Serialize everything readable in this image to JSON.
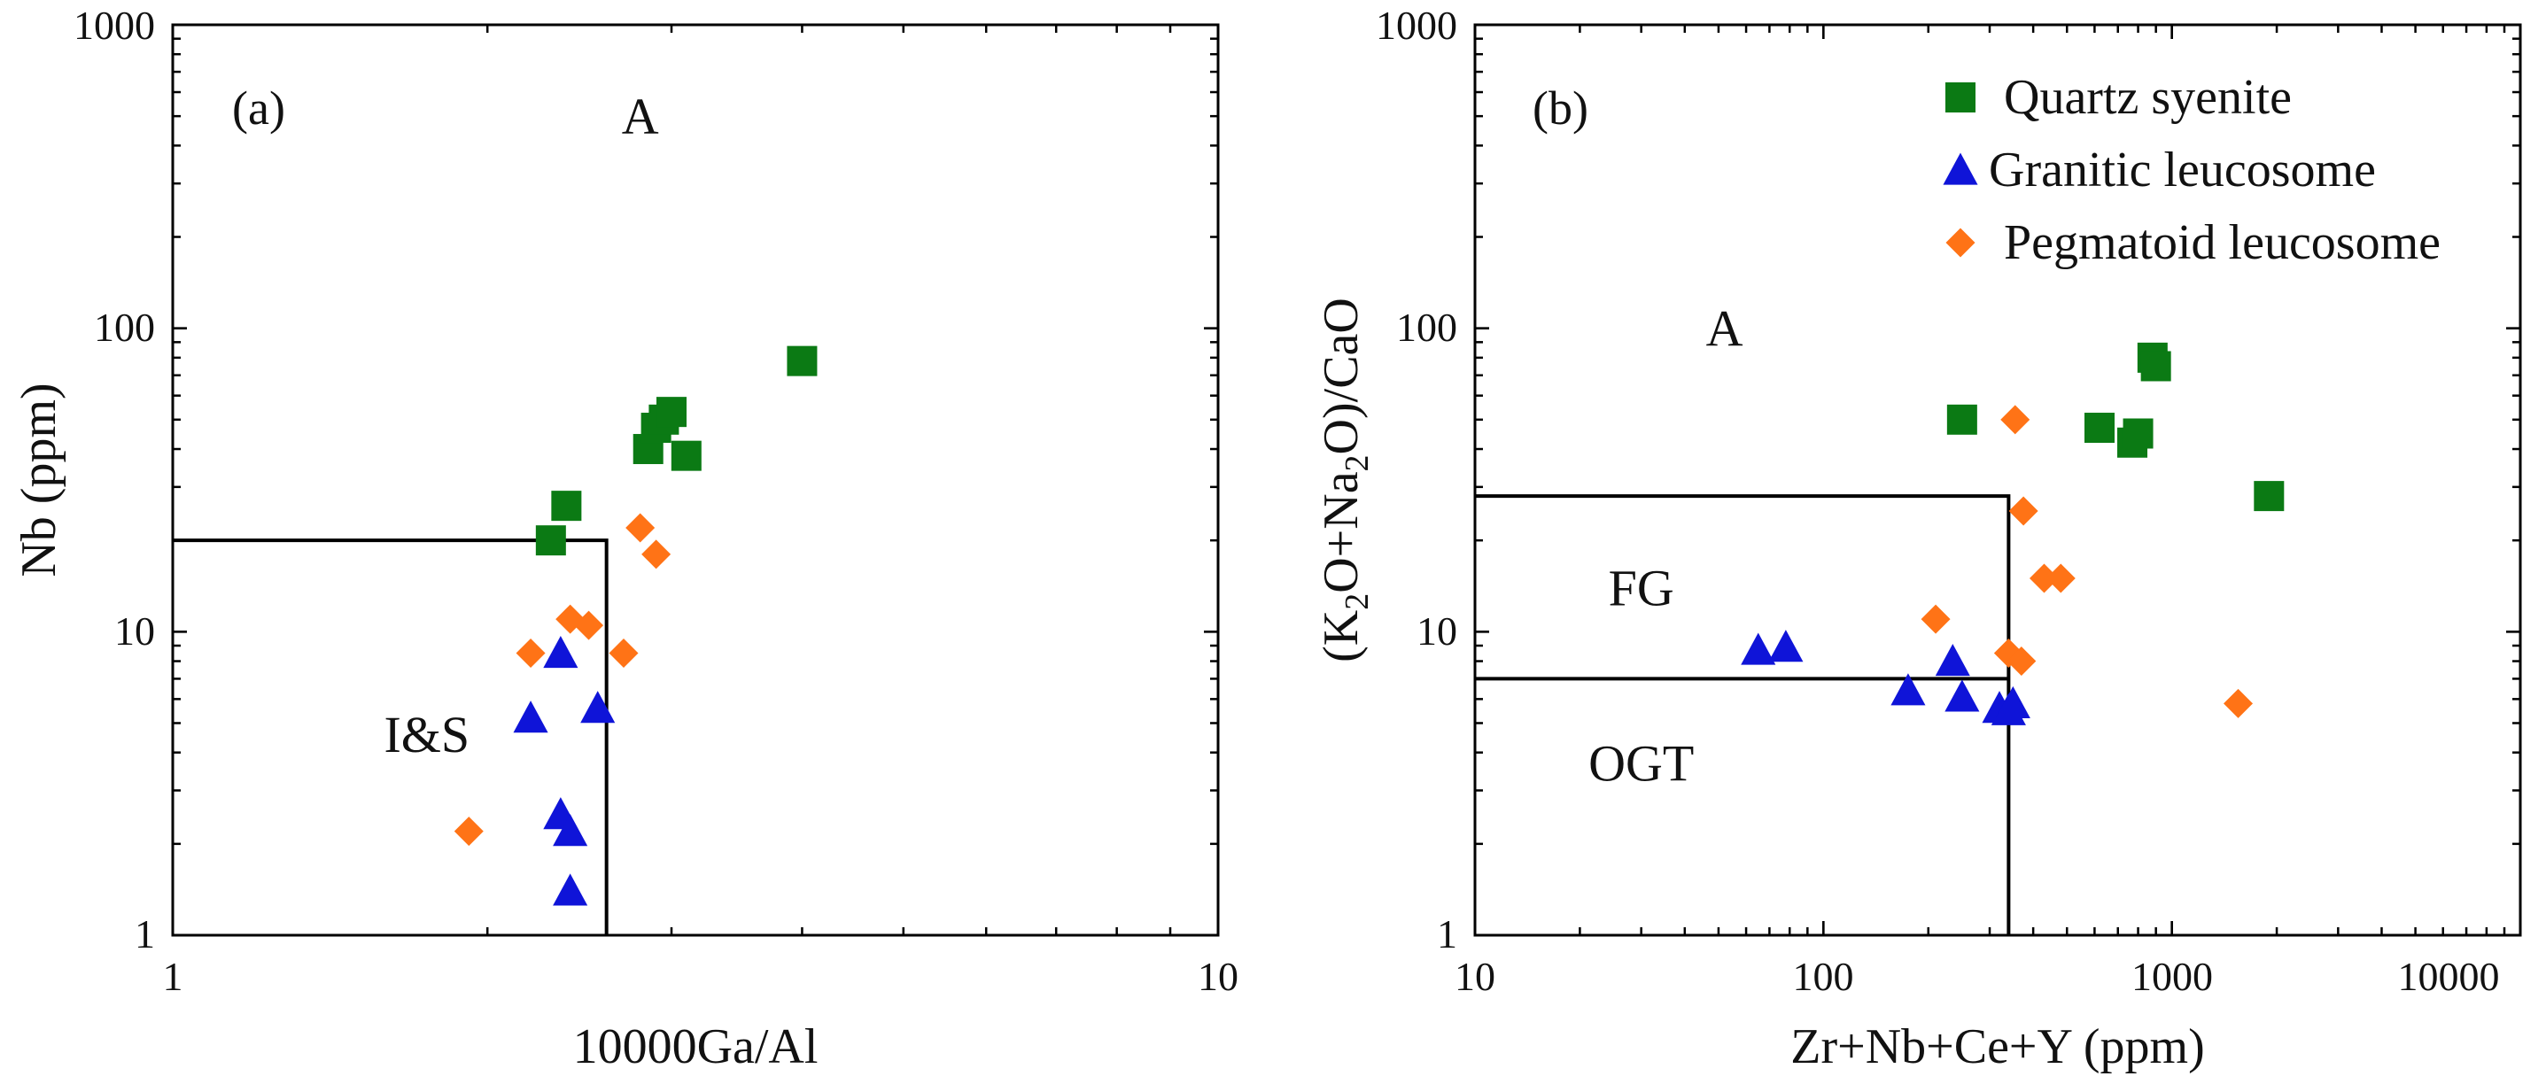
{
  "colors": {
    "quartz_syenite": "#0b7a14",
    "granitic_leucosome": "#0f14d8",
    "pegmatoid_leucosome": "#ff7316"
  },
  "chart_data": [
    {
      "type": "scatter",
      "panel_label": "(a)",
      "xlabel": "10000Ga/Al",
      "ylabel": "Nb (ppm)",
      "xscale": "log",
      "yscale": "log",
      "xlim": [
        1,
        10
      ],
      "ylim": [
        1,
        1000
      ],
      "x_tick_labels": [
        "1",
        "10"
      ],
      "y_tick_labels": [
        "1",
        "10",
        "100",
        "1000"
      ],
      "field_boundary": [
        [
          1,
          20
        ],
        [
          2.6,
          20
        ],
        [
          2.6,
          1
        ]
      ],
      "region_labels": [
        {
          "text": "A",
          "x": 2.8,
          "y": 500
        },
        {
          "text": "I&S",
          "x": 1.75,
          "y": 4.6
        }
      ],
      "series": [
        {
          "name": "Quartz syenite",
          "marker": "square",
          "color_key": "quartz_syenite",
          "points": [
            [
              2.3,
              20
            ],
            [
              2.38,
              26
            ],
            [
              2.85,
              40
            ],
            [
              2.9,
              47
            ],
            [
              2.95,
              50
            ],
            [
              3.0,
              53
            ],
            [
              3.1,
              38
            ],
            [
              4.0,
              78
            ]
          ]
        },
        {
          "name": "Granitic leucosome",
          "marker": "triangle",
          "color_key": "granitic_leucosome",
          "points": [
            [
              2.35,
              8.5
            ],
            [
              2.2,
              5.2
            ],
            [
              2.35,
              2.5
            ],
            [
              2.4,
              2.2
            ],
            [
              2.4,
              1.4
            ],
            [
              2.55,
              5.6
            ]
          ]
        },
        {
          "name": "Pegmatoid leucosome",
          "marker": "diamond",
          "color_key": "pegmatoid_leucosome",
          "points": [
            [
              1.92,
              2.2
            ],
            [
              2.2,
              8.5
            ],
            [
              2.4,
              11
            ],
            [
              2.5,
              10.5
            ],
            [
              2.7,
              8.5
            ],
            [
              2.8,
              22
            ],
            [
              2.9,
              18
            ]
          ]
        }
      ]
    },
    {
      "type": "scatter",
      "panel_label": "(b)",
      "xlabel": "Zr+Nb+Ce+Y (ppm)",
      "ylabel": "(K2O+Na2O)/CaO",
      "ylabel_parts": [
        "(K",
        "2",
        "O+Na",
        "2",
        "O)/CaO"
      ],
      "xscale": "log",
      "yscale": "log",
      "xlim": [
        10,
        10000
      ],
      "ylim": [
        1,
        1000
      ],
      "x_tick_labels": [
        "10",
        "100",
        "1000",
        "10000"
      ],
      "y_tick_labels": [
        "1",
        "10",
        "100",
        "1000"
      ],
      "field_boundary": [
        [
          10,
          28
        ],
        [
          340,
          28
        ],
        [
          340,
          1
        ]
      ],
      "field_divider": [
        [
          10,
          7
        ],
        [
          340,
          7
        ]
      ],
      "region_labels": [
        {
          "text": "A",
          "x": 52,
          "y": 100
        },
        {
          "text": "FG",
          "x": 30,
          "y": 14
        },
        {
          "text": "OGT",
          "x": 30,
          "y": 3.7
        }
      ],
      "legend_position": "top-right",
      "series": [
        {
          "name": "Quartz syenite",
          "marker": "square",
          "color_key": "quartz_syenite",
          "points": [
            [
              250,
              50
            ],
            [
              620,
              47
            ],
            [
              770,
              42
            ],
            [
              800,
              45
            ],
            [
              880,
              80
            ],
            [
              900,
              75
            ],
            [
              1900,
              28
            ]
          ]
        },
        {
          "name": "Granitic leucosome",
          "marker": "triangle",
          "color_key": "granitic_leucosome",
          "points": [
            [
              65,
              8.7
            ],
            [
              78,
              8.9
            ],
            [
              175,
              6.4
            ],
            [
              235,
              8.0
            ],
            [
              250,
              6.1
            ],
            [
              320,
              5.6
            ],
            [
              340,
              5.5
            ],
            [
              350,
              5.8
            ]
          ]
        },
        {
          "name": "Pegmatoid leucosome",
          "marker": "diamond",
          "color_key": "pegmatoid_leucosome",
          "points": [
            [
              355,
              50
            ],
            [
              375,
              25
            ],
            [
              210,
              11
            ],
            [
              340,
              8.5
            ],
            [
              370,
              8.0
            ],
            [
              430,
              15
            ],
            [
              480,
              15
            ],
            [
              1550,
              5.8
            ]
          ]
        }
      ]
    }
  ]
}
